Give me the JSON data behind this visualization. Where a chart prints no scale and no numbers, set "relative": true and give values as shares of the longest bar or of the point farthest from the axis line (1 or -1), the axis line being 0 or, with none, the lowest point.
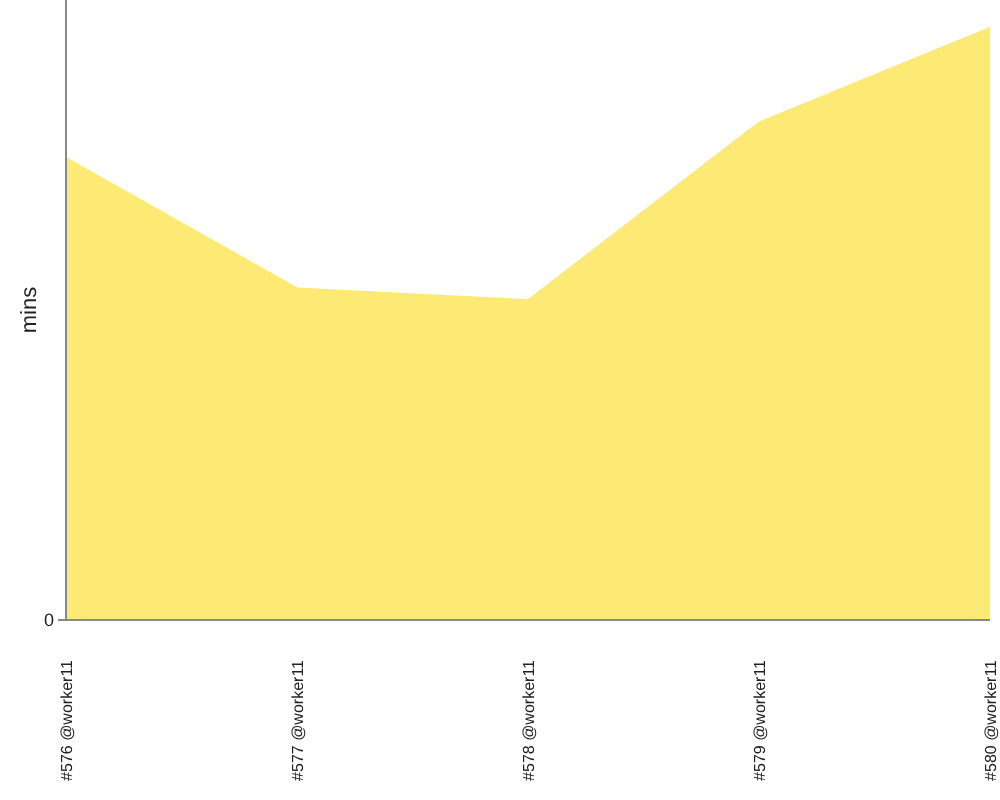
{
  "chart_data": {
    "type": "area",
    "ylabel": "mins",
    "categories": [
      "#576 @worker11",
      "#577 @worker11",
      "#578 @worker11",
      "#579 @worker11",
      "#580 @worker11"
    ],
    "values": [
      0.78,
      0.56,
      0.54,
      0.84,
      1
    ],
    "color": "#fcea74",
    "relative": true,
    "annotations": [
      "0"
    ],
    "grid": false,
    "legend": false
  }
}
